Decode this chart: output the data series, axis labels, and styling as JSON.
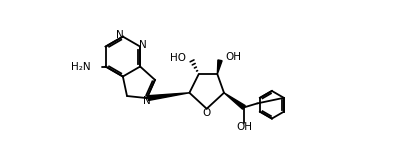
{
  "figsize": [
    4.0,
    1.53
  ],
  "dpi": 100,
  "bg_color": "#ffffff",
  "line_color": "#000000",
  "line_width": 1.3,
  "font_size": 7.5,
  "xlim": [
    0,
    10
  ],
  "ylim": [
    -2.5,
    3.2
  ]
}
